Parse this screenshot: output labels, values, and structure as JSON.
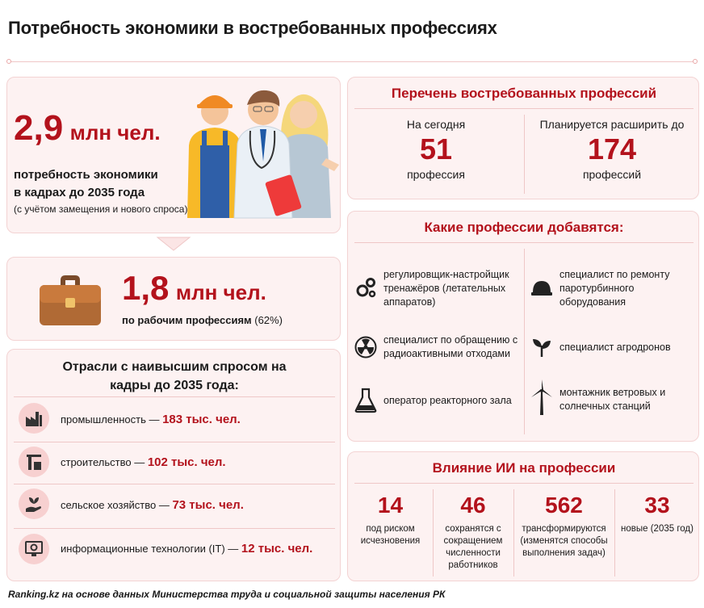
{
  "title": "Потребность экономики в востребованных профессиях",
  "demand": {
    "value": "2,9",
    "unit": "млн чел.",
    "line1": "потребность экономики",
    "line2": "в кадрах до 2035 года",
    "note": "(с учётом замещения и нового спроса)"
  },
  "workers": {
    "value": "1,8",
    "unit": "млн чел.",
    "desc_bold": "по рабочим профессиям",
    "desc_rest": " (62%)"
  },
  "sectors": {
    "heading_line1": "Отрасли с наивысшим спросом на",
    "heading_line2": "кадры до 2035 года:",
    "items": [
      {
        "name": "промышленность — ",
        "value": "183 тыс. чел.",
        "icon": "factory-icon"
      },
      {
        "name": "строительство — ",
        "value": "102 тыс. чел.",
        "icon": "crane-icon"
      },
      {
        "name": "сельское хозяйство — ",
        "value": "73 тыс. чел.",
        "icon": "plant-hand-icon"
      },
      {
        "name": "информационные технологии (IT) — ",
        "value": "12 тыс. чел.",
        "icon": "computer-gear-icon"
      }
    ]
  },
  "list": {
    "heading": "Перечень востребованных профессий",
    "today_label": "На сегодня",
    "today_value": "51",
    "today_unit": "профессия",
    "planned_label": "Планируется расширить до",
    "planned_value": "174",
    "planned_unit": "профессий"
  },
  "new_professions": {
    "heading": "Какие профессии добавятся:",
    "items": [
      {
        "text": "регулировщик-настройщик тренажёров (летательных аппаратов)",
        "icon": "gears-icon"
      },
      {
        "text": "специалист по ремонту паротурбинного оборудования",
        "icon": "hard-hat-icon"
      },
      {
        "text": "специалист по обращению с радиоактивными отходами",
        "icon": "radiation-icon"
      },
      {
        "text": "специалист агродронов",
        "icon": "sprout-icon"
      },
      {
        "text": "оператор реакторного зала",
        "icon": "flask-icon"
      },
      {
        "text": "монтажник ветровых и солнечных станций",
        "icon": "wind-turbine-icon"
      }
    ]
  },
  "ai": {
    "heading": "Влияние ИИ на профессии",
    "stats": [
      {
        "value": "14",
        "label": "под риском исчезновения"
      },
      {
        "value": "46",
        "label": "сохранятся с сокращением численности работников"
      },
      {
        "value": "562",
        "label": "трансформируются (изменятся способы выполнения задач)"
      },
      {
        "value": "33",
        "label": "новые (2035 год)"
      }
    ]
  },
  "source": "Ranking.kz на основе данных Министерства труда и социальной защиты населения РК",
  "colors": {
    "accent": "#b3121c",
    "card_bg": "#fdf2f2",
    "border": "#f3d3d3"
  }
}
